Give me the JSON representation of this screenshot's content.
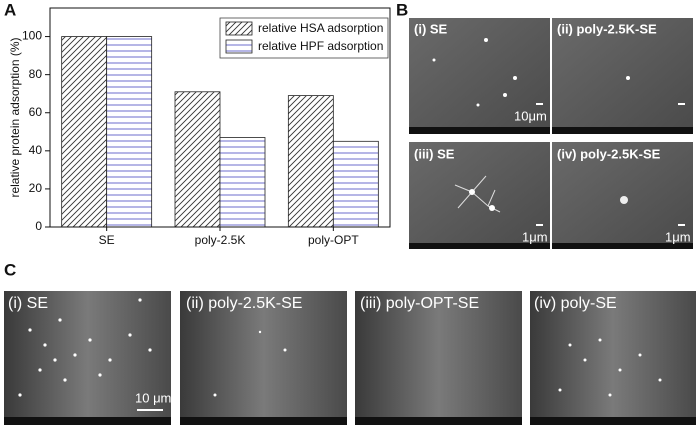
{
  "chart_data": {
    "type": "bar",
    "ylabel": "relative protein adsorption (%)",
    "categories": [
      "SE",
      "poly-2.5K",
      "poly-OPT"
    ],
    "series": [
      {
        "name": "relative HSA adsorption",
        "color": "#333333",
        "hatch": "diagonal",
        "values": [
          100,
          71,
          69
        ]
      },
      {
        "name": "relative HPF adsorption",
        "color": "#5c5cc8",
        "hatch": "horizontal",
        "values": [
          100,
          47,
          45
        ]
      }
    ],
    "ylim": [
      0,
      115
    ],
    "yticks": [
      0,
      20,
      40,
      60,
      80,
      100
    ],
    "legend": "upper right"
  },
  "panels": {
    "A": {
      "label": "A"
    },
    "B": {
      "label": "B",
      "images": [
        {
          "label": "(i) SE",
          "scale": "10μm"
        },
        {
          "label": "(ii) poly-2.5K-SE"
        },
        {
          "label": "(iii) SE",
          "scale": "1μm"
        },
        {
          "label": "(iv) poly-2.5K-SE",
          "scale": "1μm"
        }
      ]
    },
    "C": {
      "label": "C",
      "images": [
        {
          "label": "(i) SE",
          "scale": "10 μm"
        },
        {
          "label": "(ii) poly-2.5K-SE"
        },
        {
          "label": "(iii) poly-OPT-SE"
        },
        {
          "label": "(iv) poly-SE"
        }
      ]
    }
  }
}
